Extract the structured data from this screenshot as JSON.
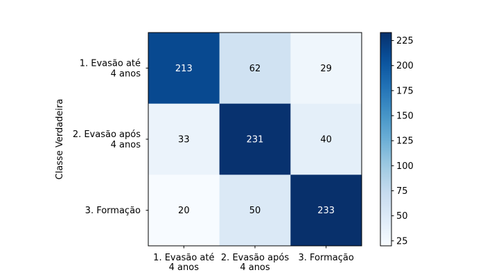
{
  "chart_data": {
    "type": "heatmap",
    "ylabel": "Classe Verdadeira",
    "xlabel": "",
    "row_labels": [
      [
        "1. Evasão até",
        "4 anos"
      ],
      [
        "2. Evasão após",
        "4 anos"
      ],
      [
        "3. Formação"
      ]
    ],
    "col_labels": [
      [
        "1. Evasão até",
        "4 anos"
      ],
      [
        "2. Evasão após",
        "4 anos"
      ],
      [
        "3. Formação"
      ]
    ],
    "values": [
      [
        213,
        62,
        29
      ],
      [
        33,
        231,
        40
      ],
      [
        20,
        50,
        233
      ]
    ],
    "colormap": "Blues",
    "vmin": 20,
    "vmax": 233,
    "colorbar_ticks": [
      25,
      50,
      75,
      100,
      125,
      150,
      175,
      200,
      225
    ]
  }
}
